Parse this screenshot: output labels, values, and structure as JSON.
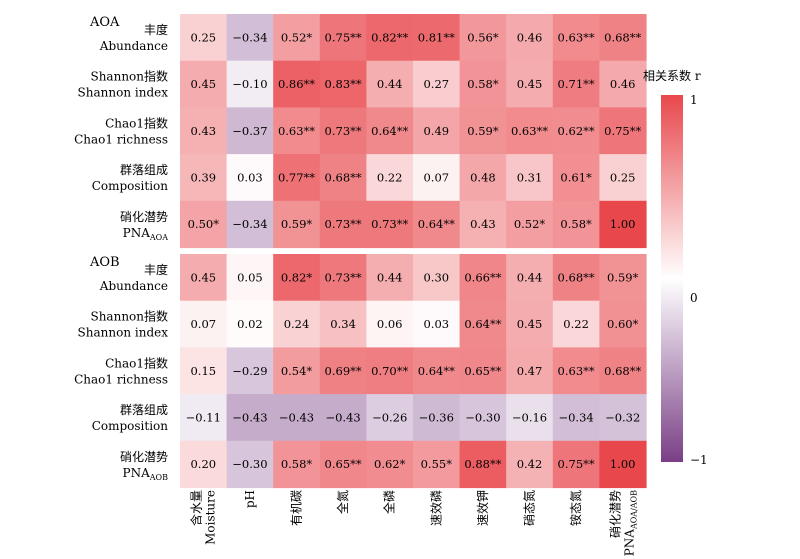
{
  "chart_data": {
    "type": "heatmap",
    "colorbar": {
      "title": "相关系数 r",
      "ticks": [
        "1",
        "0",
        "−1"
      ],
      "range": [
        -1,
        1
      ],
      "colors": {
        "high": "#e8474c",
        "mid": "#ffffff",
        "low": "#7a3f86"
      }
    },
    "columns": [
      {
        "cn": "含水量",
        "en": "Moisture"
      },
      {
        "cn": "",
        "en": "pH"
      },
      {
        "cn": "有机碳",
        "en": ""
      },
      {
        "cn": "全氮",
        "en": ""
      },
      {
        "cn": "全磷",
        "en": ""
      },
      {
        "cn": "速效磷",
        "en": ""
      },
      {
        "cn": "速效钾",
        "en": ""
      },
      {
        "cn": "硝态氮",
        "en": ""
      },
      {
        "cn": "铵态氮",
        "en": ""
      },
      {
        "cn": "硝化潜势",
        "en": "PNA",
        "en_sub": "AOA/AOB"
      }
    ],
    "panels": [
      {
        "name": "AOA",
        "rows": [
          {
            "cn": "丰度",
            "en": "Abundance",
            "values": [
              0.25,
              -0.34,
              0.52,
              0.75,
              0.82,
              0.81,
              0.56,
              0.46,
              0.63,
              0.68
            ],
            "labels": [
              "0.25",
              "−0.34",
              "0.52*",
              "0.75**",
              "0.82**",
              "0.81**",
              "0.56*",
              "0.46",
              "0.63**",
              "0.68**"
            ]
          },
          {
            "cn": "Shannon指数",
            "en": "Shannon index",
            "values": [
              0.45,
              -0.1,
              0.86,
              0.83,
              0.44,
              0.27,
              0.58,
              0.45,
              0.71,
              0.46
            ],
            "labels": [
              "0.45",
              "−0.10",
              "0.86**",
              "0.83**",
              "0.44",
              "0.27",
              "0.58*",
              "0.45",
              "0.71**",
              "0.46"
            ]
          },
          {
            "cn": "Chao1指数",
            "en": "Chao1 richness",
            "values": [
              0.43,
              -0.37,
              0.63,
              0.73,
              0.64,
              0.49,
              0.59,
              0.63,
              0.62,
              0.75
            ],
            "labels": [
              "0.43",
              "−0.37",
              "0.63**",
              "0.73**",
              "0.64**",
              "0.49",
              "0.59*",
              "0.63**",
              "0.62**",
              "0.75**"
            ]
          },
          {
            "cn": "群落组成",
            "en": "Composition",
            "values": [
              0.39,
              0.03,
              0.77,
              0.68,
              0.22,
              0.07,
              0.48,
              0.31,
              0.61,
              0.25
            ],
            "labels": [
              "0.39",
              "0.03",
              "0.77**",
              "0.68**",
              "0.22",
              "0.07",
              "0.48",
              "0.31",
              "0.61*",
              "0.25"
            ]
          },
          {
            "cn": "硝化潜势",
            "en": "PNA",
            "en_sub": "AOA",
            "values": [
              0.5,
              -0.34,
              0.59,
              0.73,
              0.73,
              0.64,
              0.43,
              0.52,
              0.58,
              1.0
            ],
            "labels": [
              "0.50*",
              "−0.34",
              "0.59*",
              "0.73**",
              "0.73**",
              "0.64**",
              "0.43",
              "0.52*",
              "0.58*",
              "1.00"
            ]
          }
        ]
      },
      {
        "name": "AOB",
        "rows": [
          {
            "cn": "丰度",
            "en": "Abundance",
            "values": [
              0.45,
              0.05,
              0.82,
              0.73,
              0.44,
              0.3,
              0.66,
              0.44,
              0.68,
              0.59
            ],
            "labels": [
              "0.45",
              "0.05",
              "0.82*",
              "0.73**",
              "0.44",
              "0.30",
              "0.66**",
              "0.44",
              "0.68**",
              "0.59*"
            ]
          },
          {
            "cn": "Shannon指数",
            "en": "Shannon index",
            "values": [
              0.07,
              0.02,
              0.24,
              0.34,
              0.06,
              0.03,
              0.64,
              0.45,
              0.22,
              0.6
            ],
            "labels": [
              "0.07",
              "0.02",
              "0.24",
              "0.34",
              "0.06",
              "0.03",
              "0.64**",
              "0.45",
              "0.22",
              "0.60*"
            ]
          },
          {
            "cn": "Chao1指数",
            "en": "Chao1 richness",
            "values": [
              0.15,
              -0.29,
              0.54,
              0.69,
              0.7,
              0.64,
              0.65,
              0.47,
              0.63,
              0.68
            ],
            "labels": [
              "0.15",
              "−0.29",
              "0.54*",
              "0.69**",
              "0.70**",
              "0.64**",
              "0.65**",
              "0.47",
              "0.63**",
              "0.68**"
            ]
          },
          {
            "cn": "群落组成",
            "en": "Composition",
            "values": [
              -0.11,
              -0.43,
              -0.43,
              -0.43,
              -0.26,
              -0.36,
              -0.3,
              -0.16,
              -0.34,
              -0.32
            ],
            "labels": [
              "−0.11",
              "−0.43",
              "−0.43",
              "−0.43",
              "−0.26",
              "−0.36",
              "−0.30",
              "−0.16",
              "−0.34",
              "−0.32"
            ]
          },
          {
            "cn": "硝化潜势",
            "en": "PNA",
            "en_sub": "AOB",
            "values": [
              0.2,
              -0.3,
              0.58,
              0.65,
              0.62,
              0.55,
              0.88,
              0.42,
              0.75,
              1.0
            ],
            "labels": [
              "0.20",
              "−0.30",
              "0.58*",
              "0.65**",
              "0.62*",
              "0.55*",
              "0.88**",
              "0.42",
              "0.75**",
              "1.00"
            ]
          }
        ]
      }
    ]
  }
}
